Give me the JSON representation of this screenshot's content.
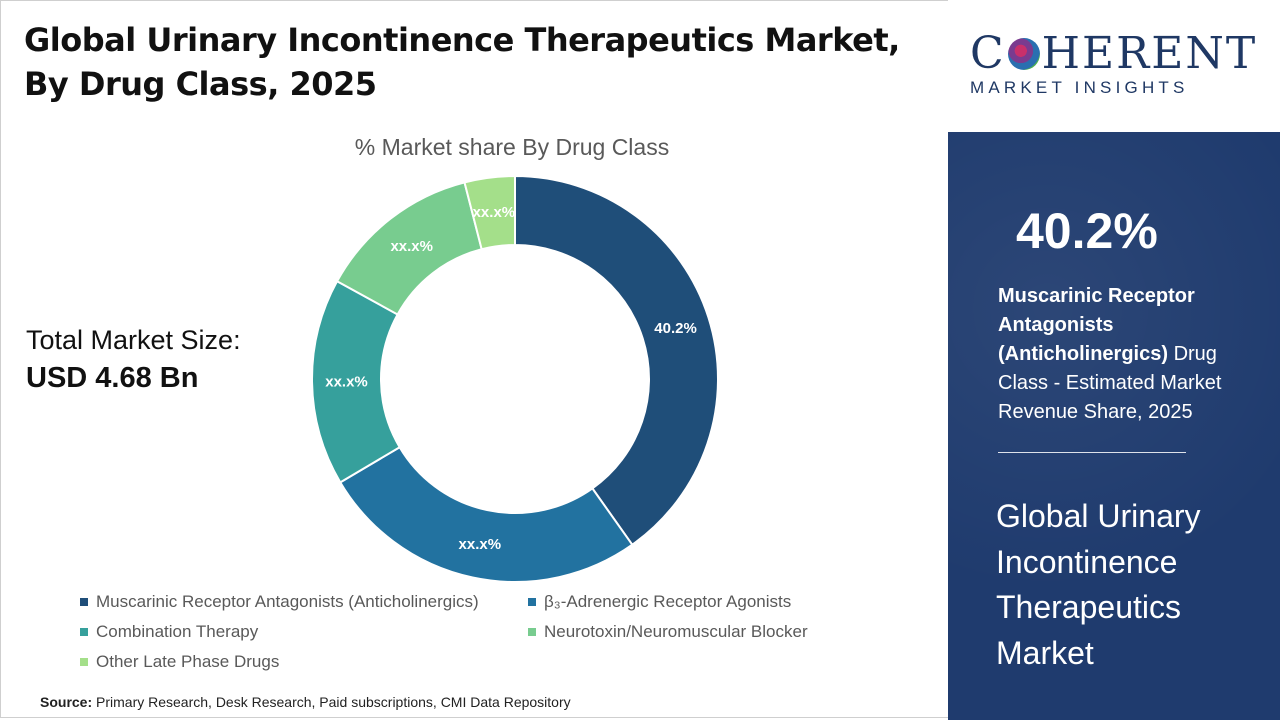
{
  "title": "Global Urinary Incontinence Therapeutics Market, By Drug Class, 2025",
  "total_market": {
    "label": "Total Market Size:",
    "value": "USD 4.68 Bn"
  },
  "chart_data": {
    "type": "pie",
    "title": "% Market share By Drug Class",
    "categories": [
      "Muscarinic Receptor Antagonists (Anticholinergics)",
      "β₃-Adrenergic Receptor Agonists",
      "Combination Therapy",
      "Neurotoxin/Neuromuscular Blocker",
      "Other Late Phase Drugs"
    ],
    "values": [
      40.2,
      26.3,
      16.5,
      13.0,
      4.0
    ],
    "labels": [
      "40.2%",
      "xx.x%",
      "xx.x%",
      "xx.x%",
      "xx.x%"
    ],
    "colors": [
      "#1f4e79",
      "#2272a0",
      "#36a09c",
      "#78cc8f",
      "#a4df8a"
    ],
    "donut": true,
    "legend_position": "bottom"
  },
  "source": {
    "label": "Source:",
    "text": "Primary Research, Desk Research, Paid subscriptions, CMI Data Repository"
  },
  "logo": {
    "main_left": "C",
    "main_right": "HERENT",
    "sub": "MARKET INSIGHTS"
  },
  "highlight": {
    "percent": "40.2%",
    "segment_bold": "Muscarinic Receptor Antagonists (Anticholinergics)",
    "segment_rest": " Drug Class - Estimated Market Revenue Share, 2025",
    "market_name": "Global Urinary Incontinence Therapeutics Market"
  },
  "colors": {
    "panel_bg": "#1f3b6e",
    "logo_text": "#1f3864"
  }
}
